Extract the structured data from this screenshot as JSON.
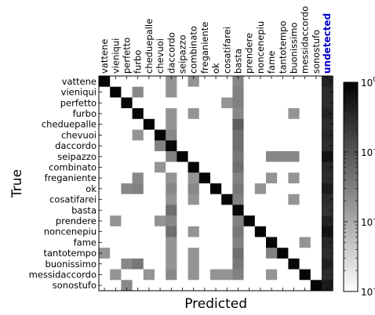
{
  "chart_data": {
    "type": "heatmap",
    "title": "",
    "xlabel": "Predicted",
    "ylabel": "True",
    "row_labels": [
      "vattene",
      "vieniqui",
      "perfetto",
      "furbo",
      "cheduepalle",
      "chevuoi",
      "daccordo",
      "seipazzo",
      "combinato",
      "freganiente",
      "ok",
      "cosatifarei",
      "basta",
      "prendere",
      "noncenepiu",
      "fame",
      "tantotempo",
      "buonissimo",
      "messidaccordo",
      "sonostufo"
    ],
    "col_labels": [
      "vattene",
      "vieniqui",
      "perfetto",
      "furbo",
      "cheduepalle",
      "chevuoi",
      "daccordo",
      "seipazzo",
      "combinato",
      "freganiente",
      "ok",
      "cosatifarei",
      "basta",
      "prendere",
      "noncenepiu",
      "fame",
      "tantotempo",
      "buonissimo",
      "messidaccordo",
      "sonostufo",
      "undetected"
    ],
    "highlight_label": "undetected",
    "highlight_color": "#0000cc",
    "colorscale": "gray_r",
    "log_scale": true,
    "vmin": 0.001,
    "vmax": 1,
    "colorbar_ticks": [
      {
        "value": 1,
        "label": "10^0"
      },
      {
        "value": 0.1,
        "label": "10^-1"
      },
      {
        "value": 0.01,
        "label": "10^-2"
      },
      {
        "value": 0.001,
        "label": "10^-3"
      }
    ],
    "values": [
      [
        0.85,
        0,
        0,
        0,
        0,
        0,
        0.018,
        0,
        0.018,
        0,
        0,
        0,
        0.025,
        0,
        0,
        0,
        0,
        0,
        0,
        0,
        0.4
      ],
      [
        0,
        0.85,
        0,
        0.025,
        0,
        0,
        0.018,
        0,
        0,
        0,
        0,
        0,
        0.03,
        0,
        0,
        0,
        0,
        0,
        0,
        0,
        0.3
      ],
      [
        0,
        0,
        0.85,
        0,
        0,
        0,
        0,
        0,
        0,
        0,
        0,
        0.018,
        0.03,
        0,
        0,
        0,
        0,
        0,
        0,
        0,
        0.3
      ],
      [
        0,
        0,
        0,
        0.85,
        0,
        0,
        0.018,
        0,
        0.018,
        0,
        0,
        0,
        0.025,
        0,
        0,
        0,
        0,
        0.018,
        0,
        0,
        0.4
      ],
      [
        0,
        0,
        0,
        0,
        0.85,
        0,
        0.018,
        0,
        0,
        0,
        0,
        0,
        0.08,
        0,
        0,
        0,
        0,
        0,
        0,
        0,
        0.3
      ],
      [
        0,
        0,
        0,
        0.018,
        0,
        0.85,
        0.025,
        0,
        0,
        0,
        0,
        0,
        0.05,
        0,
        0,
        0,
        0,
        0,
        0,
        0,
        0.35
      ],
      [
        0,
        0,
        0,
        0,
        0,
        0.03,
        0.85,
        0,
        0,
        0,
        0,
        0,
        0.05,
        0,
        0,
        0,
        0,
        0,
        0,
        0,
        0.3
      ],
      [
        0,
        0,
        0,
        0,
        0,
        0,
        0.03,
        0.85,
        0,
        0,
        0,
        0,
        0.04,
        0,
        0,
        0.025,
        0.025,
        0.025,
        0,
        0,
        0.6
      ],
      [
        0,
        0,
        0,
        0,
        0,
        0.018,
        0,
        0,
        0.85,
        0,
        0,
        0,
        0.05,
        0,
        0,
        0,
        0,
        0,
        0,
        0,
        0.35
      ],
      [
        0,
        0,
        0,
        0.025,
        0,
        0,
        0.018,
        0,
        0.018,
        0.85,
        0,
        0,
        0.03,
        0,
        0,
        0.018,
        0,
        0.018,
        0,
        0,
        0.3
      ],
      [
        0,
        0,
        0.025,
        0.03,
        0,
        0,
        0.025,
        0,
        0.025,
        0,
        0.85,
        0,
        0.04,
        0,
        0.018,
        0,
        0,
        0,
        0,
        0,
        0.45
      ],
      [
        0,
        0,
        0,
        0,
        0,
        0,
        0.018,
        0,
        0.018,
        0,
        0,
        0.85,
        0.03,
        0,
        0,
        0,
        0,
        0.018,
        0,
        0,
        0.3
      ],
      [
        0,
        0,
        0,
        0,
        0,
        0,
        0.05,
        0,
        0,
        0,
        0,
        0,
        0.85,
        0,
        0,
        0,
        0,
        0,
        0,
        0,
        0.25
      ],
      [
        0,
        0.018,
        0,
        0,
        0,
        0.018,
        0.025,
        0,
        0,
        0,
        0,
        0,
        0.03,
        0.85,
        0,
        0,
        0,
        0,
        0,
        0,
        0.4
      ],
      [
        0,
        0,
        0,
        0,
        0,
        0,
        0.05,
        0,
        0.018,
        0,
        0,
        0,
        0.04,
        0,
        0.85,
        0,
        0,
        0,
        0,
        0,
        0.6
      ],
      [
        0,
        0,
        0,
        0,
        0,
        0,
        0.018,
        0,
        0,
        0,
        0,
        0,
        0.03,
        0,
        0,
        0.85,
        0,
        0,
        0.018,
        0,
        0.35
      ],
      [
        0.018,
        0,
        0,
        0,
        0,
        0,
        0.018,
        0,
        0.018,
        0,
        0,
        0,
        0.05,
        0,
        0,
        0.03,
        0.85,
        0,
        0,
        0,
        0.3
      ],
      [
        0,
        0,
        0.025,
        0.04,
        0,
        0,
        0.018,
        0,
        0.018,
        0,
        0,
        0,
        0.04,
        0,
        0,
        0,
        0,
        0.85,
        0,
        0,
        0.4
      ],
      [
        0,
        0.018,
        0,
        0,
        0.018,
        0,
        0.025,
        0,
        0.018,
        0,
        0.018,
        0.018,
        0.03,
        0,
        0,
        0.018,
        0,
        0,
        0.85,
        0,
        0.3
      ],
      [
        0,
        0,
        0.025,
        0,
        0,
        0,
        0,
        0,
        0,
        0,
        0,
        0,
        0,
        0,
        0,
        0,
        0,
        0,
        0,
        0.85,
        0.5
      ]
    ]
  }
}
